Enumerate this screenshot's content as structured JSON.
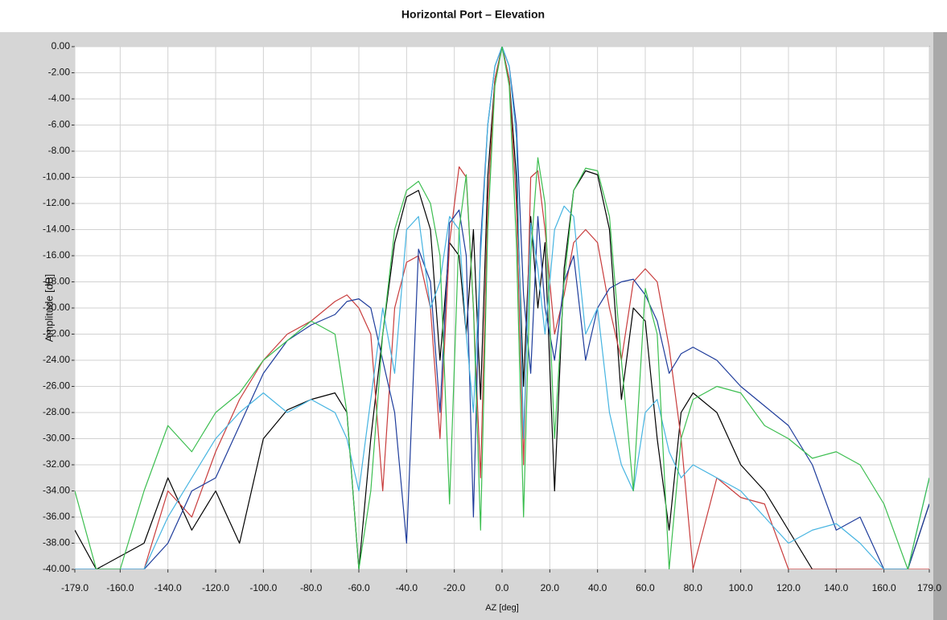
{
  "chart_data": {
    "type": "line",
    "title": "Horizontal Port – Elevation",
    "x_label": "AZ [deg]",
    "y_label": "Amplitude [dB]",
    "grid": true,
    "xlim": [
      -179,
      179
    ],
    "ylim": [
      -40,
      0
    ],
    "xticks": [
      {
        "value": -179,
        "label": "-179.0"
      },
      {
        "value": -160,
        "label": "-160.0"
      },
      {
        "value": -140,
        "label": "-140.0"
      },
      {
        "value": -120,
        "label": "-120.0"
      },
      {
        "value": -100,
        "label": "-100.0"
      },
      {
        "value": -80,
        "label": "-80.0"
      },
      {
        "value": -60,
        "label": "-60.0"
      },
      {
        "value": -40,
        "label": "-40.0"
      },
      {
        "value": -20,
        "label": "-20.0"
      },
      {
        "value": 0,
        "label": "0.0"
      },
      {
        "value": 20,
        "label": "20.0"
      },
      {
        "value": 40,
        "label": "40.0"
      },
      {
        "value": 60,
        "label": "60.0"
      },
      {
        "value": 80,
        "label": "80.0"
      },
      {
        "value": 100,
        "label": "100.0"
      },
      {
        "value": 120,
        "label": "120.0"
      },
      {
        "value": 140,
        "label": "140.0"
      },
      {
        "value": 160,
        "label": "160.0"
      },
      {
        "value": 179,
        "label": "179.0"
      }
    ],
    "yticks": [
      {
        "value": 0,
        "label": "0.00"
      },
      {
        "value": -2,
        "label": "-2.00"
      },
      {
        "value": -4,
        "label": "-4.00"
      },
      {
        "value": -6,
        "label": "-6.00"
      },
      {
        "value": -8,
        "label": "-8.00"
      },
      {
        "value": -10,
        "label": "-10.00"
      },
      {
        "value": -12,
        "label": "-12.00"
      },
      {
        "value": -14,
        "label": "-14.00"
      },
      {
        "value": -16,
        "label": "-16.00"
      },
      {
        "value": -18,
        "label": "-18.00"
      },
      {
        "value": -20,
        "label": "-20.00"
      },
      {
        "value": -22,
        "label": "-22.00"
      },
      {
        "value": -24,
        "label": "-24.00"
      },
      {
        "value": -26,
        "label": "-26.00"
      },
      {
        "value": -28,
        "label": "-28.00"
      },
      {
        "value": -30,
        "label": "-30.00"
      },
      {
        "value": -32,
        "label": "-32.00"
      },
      {
        "value": -34,
        "label": "-34.00"
      },
      {
        "value": -36,
        "label": "-36.00"
      },
      {
        "value": -38,
        "label": "-38.00"
      },
      {
        "value": -40,
        "label": "-40.00"
      }
    ],
    "x": [
      -179,
      -170,
      -160,
      -150,
      -140,
      -130,
      -120,
      -110,
      -100,
      -90,
      -80,
      -70,
      -65,
      -60,
      -55,
      -50,
      -45,
      -40,
      -35,
      -30,
      -26,
      -22,
      -18,
      -15,
      -12,
      -9,
      -6,
      -3,
      0,
      3,
      6,
      9,
      12,
      15,
      18,
      22,
      26,
      30,
      35,
      40,
      45,
      50,
      55,
      60,
      65,
      70,
      75,
      80,
      90,
      100,
      110,
      120,
      130,
      140,
      150,
      160,
      170,
      179
    ],
    "series": [
      {
        "color": "#000000",
        "values": [
          -37,
          -40,
          -39,
          -38,
          -33,
          -37,
          -34,
          -38,
          -30,
          -27.8,
          -27,
          -26.5,
          -28,
          -40,
          -30,
          -22,
          -15,
          -11.5,
          -11,
          -14,
          -24,
          -15,
          -16,
          -22,
          -14,
          -27,
          -10,
          -2.5,
          0,
          -2.5,
          -10,
          -26,
          -13,
          -20,
          -15,
          -34,
          -17,
          -11,
          -9.5,
          -9.8,
          -14,
          -27,
          -20,
          -21,
          -30,
          -37,
          -28,
          -26.5,
          -28,
          -32,
          -34,
          -37,
          -40,
          -40,
          -40,
          -40,
          -40,
          -35
        ]
      },
      {
        "color": "#c83c3c",
        "values": [
          -40,
          -40,
          -40,
          -40,
          -34,
          -36,
          -31,
          -27,
          -24,
          -22,
          -21,
          -19.5,
          -19,
          -20,
          -22,
          -34,
          -20,
          -16.5,
          -16,
          -20,
          -30,
          -15,
          -9.2,
          -10,
          -20,
          -33,
          -12,
          -2.5,
          0,
          -2.5,
          -12,
          -32,
          -10,
          -9.5,
          -14,
          -22,
          -19,
          -15,
          -14,
          -15,
          -20,
          -24,
          -18,
          -17,
          -18,
          -23,
          -30,
          -40,
          -33,
          -34.5,
          -35,
          -40,
          -40,
          -40,
          -40,
          -40,
          -40,
          -40
        ]
      },
      {
        "color": "#1e3c9b",
        "values": [
          -40,
          -40,
          -40,
          -40,
          -38,
          -34,
          -33,
          -29,
          -25,
          -22.5,
          -21.3,
          -20.5,
          -19.5,
          -19.3,
          -20,
          -24,
          -28,
          -38,
          -15.5,
          -18,
          -28,
          -13.5,
          -12.5,
          -16,
          -36,
          -15,
          -6,
          -1.5,
          0,
          -1.5,
          -6,
          -19,
          -25,
          -13,
          -20,
          -24,
          -18,
          -16,
          -24,
          -20,
          -18.5,
          -18,
          -17.8,
          -19,
          -21,
          -25,
          -23.5,
          -23,
          -24,
          -26,
          -27.5,
          -29,
          -32,
          -37,
          -36,
          -40,
          -40,
          -35
        ]
      },
      {
        "color": "#46b4e1",
        "values": [
          -40,
          -40,
          -40,
          -40,
          -36,
          -33,
          -30,
          -28,
          -26.5,
          -28,
          -27,
          -28,
          -30,
          -34,
          -27,
          -20,
          -25,
          -14,
          -13,
          -20,
          -18,
          -13,
          -14,
          -22,
          -28,
          -16,
          -6,
          -1.5,
          0,
          -1.5,
          -7,
          -30,
          -13.5,
          -17,
          -22,
          -14,
          -12.2,
          -13,
          -22,
          -20,
          -28,
          -32,
          -34,
          -28,
          -27,
          -31,
          -33,
          -32,
          -33,
          -34,
          -36,
          -38,
          -37,
          -36.5,
          -38,
          -40,
          -40,
          -33
        ]
      },
      {
        "color": "#3cbe50",
        "values": [
          -34,
          -40,
          -40,
          -34,
          -29,
          -31,
          -28,
          -26.5,
          -24,
          -22.5,
          -21,
          -22,
          -28,
          -40,
          -34,
          -22,
          -14,
          -11,
          -10.3,
          -12,
          -16,
          -35,
          -14,
          -9.8,
          -20,
          -37,
          -14,
          -3,
          0,
          -3,
          -15,
          -36,
          -16,
          -8.5,
          -12,
          -30,
          -18,
          -11,
          -9.3,
          -9.5,
          -13,
          -24,
          -34,
          -18.5,
          -22,
          -40,
          -30,
          -27,
          -26,
          -26.5,
          -29,
          -30,
          -31.5,
          -31,
          -32,
          -35,
          -40,
          -33
        ]
      }
    ]
  }
}
